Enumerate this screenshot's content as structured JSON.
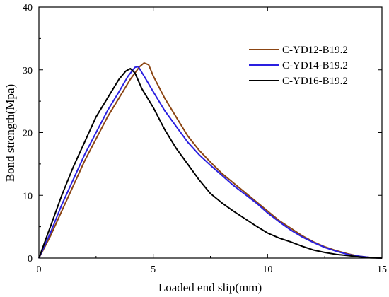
{
  "chart_data": {
    "type": "line",
    "title": "",
    "xlabel": "Loaded end slip(mm)",
    "ylabel": "Bond strength(Mpa)",
    "xlim": [
      0,
      15
    ],
    "ylim": [
      0,
      40
    ],
    "xticks": [
      0,
      5,
      10,
      15
    ],
    "yticks": [
      0,
      10,
      20,
      30,
      40
    ],
    "grid": false,
    "legend_position": "top-right",
    "series": [
      {
        "name": "C-YD12-B19.2",
        "color": "#8B4513",
        "points": [
          [
            0,
            0
          ],
          [
            0.5,
            3.5
          ],
          [
            1,
            7.5
          ],
          [
            1.5,
            11.5
          ],
          [
            2,
            15.5
          ],
          [
            2.5,
            19
          ],
          [
            3,
            22.5
          ],
          [
            3.5,
            25.5
          ],
          [
            4,
            28.5
          ],
          [
            4.4,
            30.5
          ],
          [
            4.6,
            31.1
          ],
          [
            4.8,
            30.8
          ],
          [
            5,
            29
          ],
          [
            5.5,
            25.5
          ],
          [
            6,
            22.5
          ],
          [
            6.5,
            19.5
          ],
          [
            7,
            17.2
          ],
          [
            7.5,
            15.3
          ],
          [
            8,
            13.5
          ],
          [
            8.5,
            12
          ],
          [
            9,
            10.5
          ],
          [
            9.5,
            9
          ],
          [
            10,
            7.5
          ],
          [
            10.5,
            6
          ],
          [
            11,
            4.8
          ],
          [
            11.5,
            3.6
          ],
          [
            12,
            2.6
          ],
          [
            12.5,
            1.8
          ],
          [
            13,
            1.2
          ],
          [
            13.5,
            0.7
          ],
          [
            14,
            0.3
          ],
          [
            14.5,
            0.1
          ],
          [
            15,
            0
          ]
        ]
      },
      {
        "name": "C-YD14-B19.2",
        "color": "#2A1FE0",
        "points": [
          [
            0,
            0
          ],
          [
            0.5,
            4
          ],
          [
            1,
            8.5
          ],
          [
            1.5,
            12.5
          ],
          [
            2,
            16.5
          ],
          [
            2.5,
            20
          ],
          [
            3,
            23.5
          ],
          [
            3.5,
            26.5
          ],
          [
            3.9,
            29
          ],
          [
            4.2,
            30.4
          ],
          [
            4.35,
            30.5
          ],
          [
            4.6,
            29
          ],
          [
            5,
            26.5
          ],
          [
            5.5,
            23.5
          ],
          [
            6,
            21
          ],
          [
            6.5,
            18.5
          ],
          [
            7,
            16.5
          ],
          [
            7.5,
            14.8
          ],
          [
            8,
            13.2
          ],
          [
            8.5,
            11.6
          ],
          [
            9,
            10.2
          ],
          [
            9.5,
            8.8
          ],
          [
            10,
            7.2
          ],
          [
            10.5,
            5.8
          ],
          [
            11,
            4.5
          ],
          [
            11.5,
            3.4
          ],
          [
            12,
            2.5
          ],
          [
            12.5,
            1.7
          ],
          [
            13,
            1.1
          ],
          [
            13.5,
            0.6
          ],
          [
            14,
            0.3
          ],
          [
            14.5,
            0.1
          ],
          [
            15,
            0
          ]
        ]
      },
      {
        "name": "C-YD16-B19.2",
        "color": "#000000",
        "points": [
          [
            0,
            0
          ],
          [
            0.5,
            5
          ],
          [
            1,
            10
          ],
          [
            1.5,
            14.5
          ],
          [
            2,
            18.5
          ],
          [
            2.5,
            22.5
          ],
          [
            3,
            25.5
          ],
          [
            3.5,
            28.5
          ],
          [
            3.8,
            29.8
          ],
          [
            4.0,
            30.2
          ],
          [
            4.2,
            29.5
          ],
          [
            4.5,
            27
          ],
          [
            5,
            24
          ],
          [
            5.5,
            20.5
          ],
          [
            6,
            17.5
          ],
          [
            6.5,
            15
          ],
          [
            7,
            12.5
          ],
          [
            7.5,
            10.3
          ],
          [
            8,
            8.8
          ],
          [
            8.5,
            7.5
          ],
          [
            9,
            6.3
          ],
          [
            9.5,
            5.1
          ],
          [
            10,
            4
          ],
          [
            10.5,
            3.2
          ],
          [
            11,
            2.6
          ],
          [
            11.5,
            1.9
          ],
          [
            12,
            1.3
          ],
          [
            12.5,
            0.9
          ],
          [
            13,
            0.6
          ],
          [
            13.5,
            0.4
          ],
          [
            14,
            0.2
          ],
          [
            14.5,
            0.05
          ],
          [
            15,
            0
          ]
        ]
      }
    ]
  }
}
